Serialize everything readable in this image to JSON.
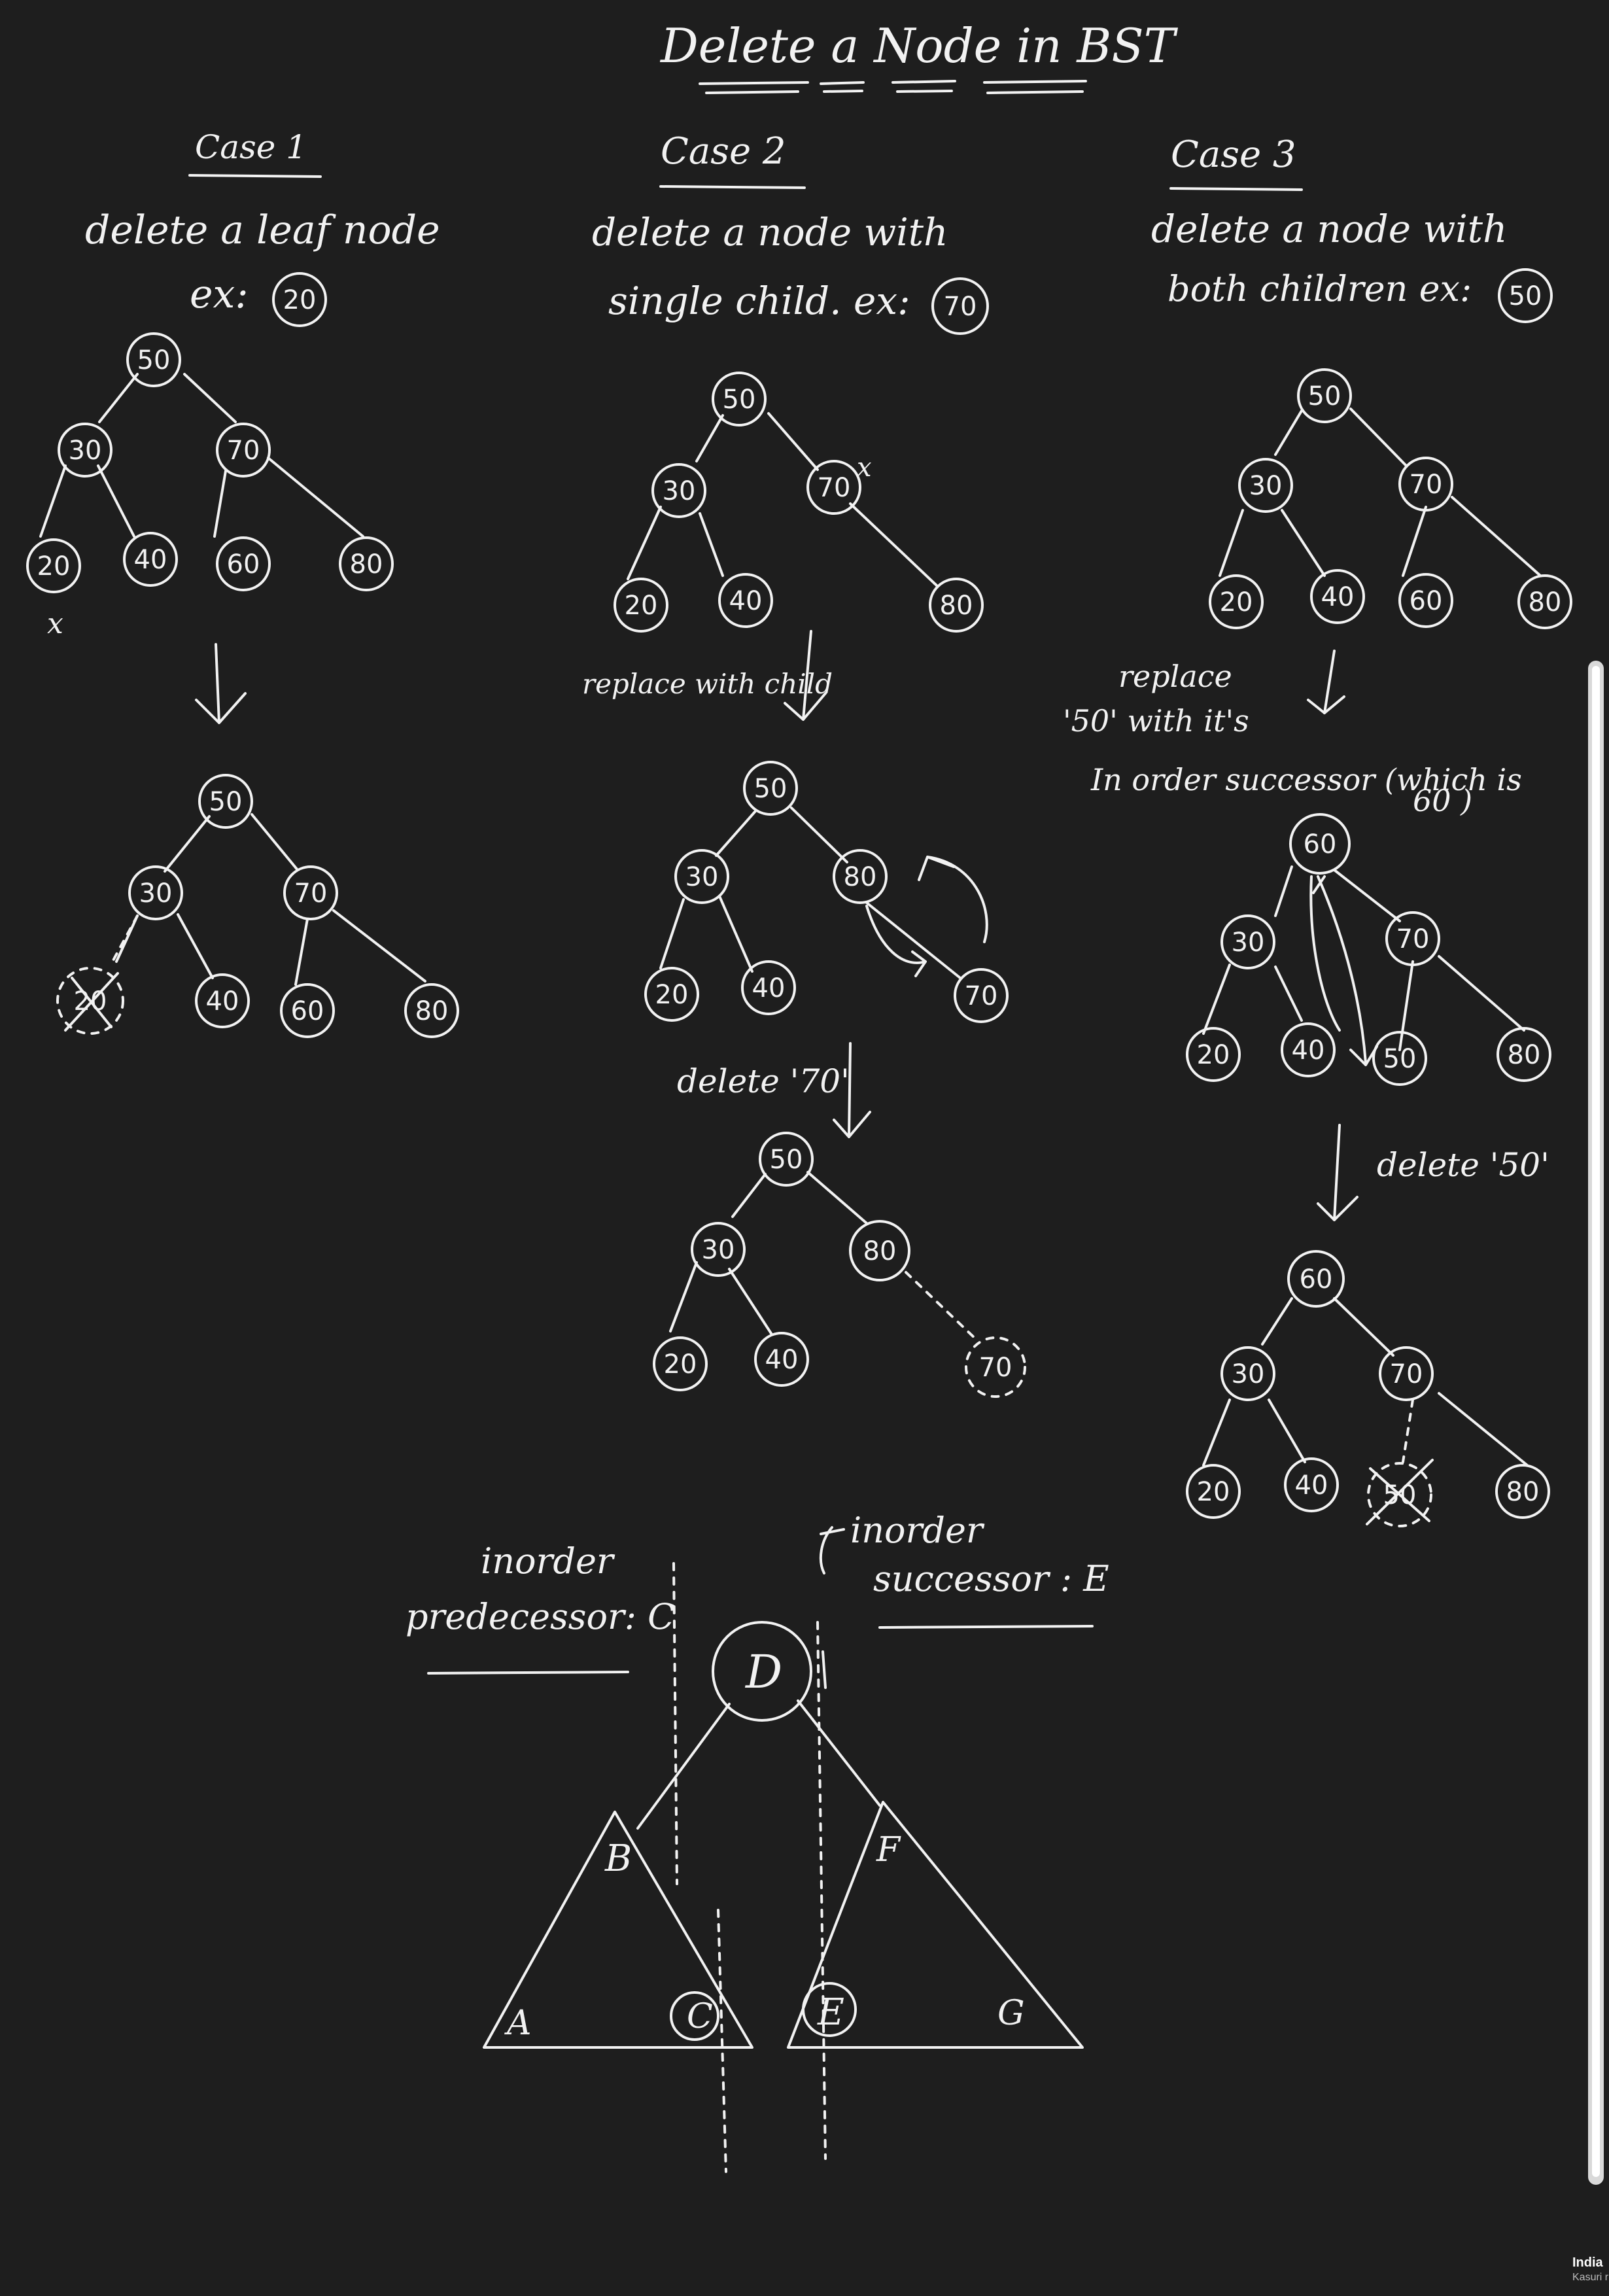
{
  "title": "Delete a Node in BST",
  "cases": [
    {
      "heading": "Case 1",
      "line1": "delete a leaf node",
      "line2": "ex:",
      "example": "20",
      "trees": [
        [
          "50",
          "30",
          "70",
          "20",
          "40",
          "60",
          "80"
        ],
        [
          "50",
          "30",
          "70",
          "20",
          "40",
          "60",
          "80"
        ]
      ],
      "marks": [
        "x"
      ]
    },
    {
      "heading": "Case 2",
      "line1": "delete a node with",
      "line2": "single child. ex:",
      "example": "70",
      "step1": "replace with child",
      "step2": "delete '70'",
      "trees": [
        [
          "50",
          "30",
          "70",
          "20",
          "40",
          "80"
        ],
        [
          "50",
          "30",
          "80",
          "20",
          "40",
          "70"
        ],
        [
          "50",
          "30",
          "80",
          "20",
          "40",
          "70"
        ]
      ],
      "marks": [
        "x"
      ]
    },
    {
      "heading": "Case 3",
      "line1": "delete a node with",
      "line2": "both children ex:",
      "example": "50",
      "step1a": "replace",
      "step1b": "'50' with it's",
      "step1c": "In order successor (which is",
      "step1d": "60 )",
      "step2": "delete '50'",
      "trees": [
        [
          "50",
          "30",
          "70",
          "20",
          "40",
          "60",
          "80"
        ],
        [
          "60",
          "30",
          "70",
          "20",
          "40",
          "50",
          "80"
        ],
        [
          "60",
          "30",
          "70",
          "20",
          "40",
          "50",
          "80"
        ]
      ]
    }
  ],
  "inorder": {
    "pred_line1": "inorder",
    "pred_line2": "predecessor: C",
    "succ_line1": "inorder",
    "succ_line2": "successor : E",
    "root": "D",
    "nodes": [
      "B",
      "A",
      "C",
      "F",
      "E",
      "G"
    ]
  },
  "corner": {
    "line1": "India",
    "line2": "Kasuri r"
  },
  "colors": {
    "background": "#1e1e1e",
    "ink": "#f2f2f2"
  }
}
